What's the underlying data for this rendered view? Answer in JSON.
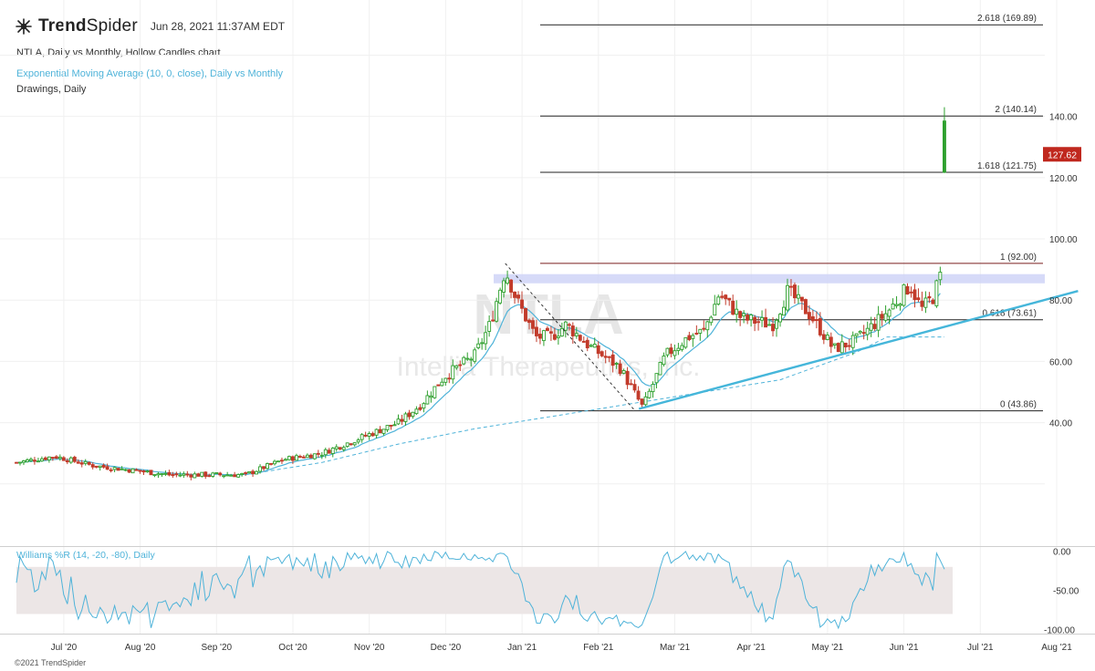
{
  "brand": {
    "name_bold": "Trend",
    "name_light": "Spider",
    "timestamp": "Jun 28, 2021 11:37AM EDT"
  },
  "header": {
    "title": "NTLA, Daily vs Monthly, Hollow Candles chart",
    "ema_label": "Exponential Moving Average (10, 0, close), Daily vs Monthly",
    "drawings_label": "Drawings, Daily"
  },
  "watermark": {
    "ticker": "NTLA",
    "company": "Intellia Therapeutics, Inc."
  },
  "footer": "©2021 TrendSpider",
  "colors": {
    "up": "#2ea02e",
    "down": "#c23b2b",
    "ema": "#4fb3d9",
    "price_tag": "#c0281e",
    "zone": "#cfd3f7",
    "wr_band": "#ece6e6"
  },
  "chart_data": {
    "type": "candlestick",
    "title": "NTLA, Daily vs Monthly, Hollow Candles chart",
    "ylim": [
      0,
      178
    ],
    "y_ticks": [
      {
        "value": 40,
        "label": "40.00"
      },
      {
        "value": 60,
        "label": "60.00"
      },
      {
        "value": 80,
        "label": "80.00"
      },
      {
        "value": 100,
        "label": "100.00"
      },
      {
        "value": 120,
        "label": "120.00"
      },
      {
        "value": 140,
        "label": "140.00"
      }
    ],
    "x_ticks": [
      "Jul '20",
      "Aug '20",
      "Sep '20",
      "Oct '20",
      "Nov '20",
      "Dec '20",
      "Jan '21",
      "Feb '21",
      "Mar '21",
      "Apr '21",
      "May '21",
      "Jun '21",
      "Jul '21",
      "Aug '21"
    ],
    "last_price": {
      "value": 127.62,
      "label": "127.62"
    },
    "price_anchors": [
      {
        "m": 0.0,
        "p": 27
      },
      {
        "m": 0.5,
        "p": 29
      },
      {
        "m": 1.0,
        "p": 26
      },
      {
        "m": 2.0,
        "p": 23
      },
      {
        "m": 3.0,
        "p": 23
      },
      {
        "m": 3.5,
        "p": 28
      },
      {
        "m": 4.0,
        "p": 30
      },
      {
        "m": 4.5,
        "p": 35
      },
      {
        "m": 5.0,
        "p": 40
      },
      {
        "m": 5.3,
        "p": 46
      },
      {
        "m": 5.6,
        "p": 55
      },
      {
        "m": 6.0,
        "p": 62
      },
      {
        "m": 6.2,
        "p": 72
      },
      {
        "m": 6.4,
        "p": 90
      },
      {
        "m": 6.55,
        "p": 80
      },
      {
        "m": 6.8,
        "p": 68
      },
      {
        "m": 7.0,
        "p": 68
      },
      {
        "m": 7.2,
        "p": 72
      },
      {
        "m": 7.5,
        "p": 65
      },
      {
        "m": 7.9,
        "p": 58
      },
      {
        "m": 8.2,
        "p": 45
      },
      {
        "m": 8.5,
        "p": 62
      },
      {
        "m": 8.8,
        "p": 68
      },
      {
        "m": 9.0,
        "p": 70
      },
      {
        "m": 9.2,
        "p": 82
      },
      {
        "m": 9.5,
        "p": 74
      },
      {
        "m": 9.9,
        "p": 72
      },
      {
        "m": 10.1,
        "p": 83
      },
      {
        "m": 10.4,
        "p": 75
      },
      {
        "m": 10.7,
        "p": 64
      },
      {
        "m": 11.0,
        "p": 67
      },
      {
        "m": 11.4,
        "p": 76
      },
      {
        "m": 11.7,
        "p": 85
      },
      {
        "m": 11.85,
        "p": 77
      },
      {
        "m": 12.0,
        "p": 81
      },
      {
        "m": 12.1,
        "p": 88
      }
    ],
    "breakout_candle": {
      "m": 12.15,
      "open": 121.75,
      "close": 138.5,
      "high": 143,
      "low": 121.5
    },
    "fibonacci": [
      {
        "level": "2.618",
        "value": 169.89,
        "label": "2.618 (169.89)"
      },
      {
        "level": "2",
        "value": 140.14,
        "label": "2 (140.14)"
      },
      {
        "level": "1.618",
        "value": 121.75,
        "label": "1.618 (121.75)"
      },
      {
        "level": "1",
        "value": 92.0,
        "label": "1 (92.00)"
      },
      {
        "level": "0.618",
        "value": 73.61,
        "label": "0.618 (73.61)"
      },
      {
        "level": "0",
        "value": 43.86,
        "label": "0 (43.86)"
      }
    ],
    "resistance_zone": {
      "low": 85.5,
      "high": 88.5
    },
    "trendline": {
      "from": {
        "m": 8.15,
        "p": 44.5
      },
      "to": {
        "m": 13.9,
        "p": 83
      }
    },
    "trend_drawdown": {
      "from": {
        "m": 6.4,
        "p": 92
      },
      "to": {
        "m": 8.1,
        "p": 43.86
      }
    },
    "monthly_ema": [
      {
        "m": 3.0,
        "p": 23
      },
      {
        "m": 4.0,
        "p": 27
      },
      {
        "m": 5.0,
        "p": 33
      },
      {
        "m": 6.0,
        "p": 38
      },
      {
        "m": 7.0,
        "p": 42
      },
      {
        "m": 8.0,
        "p": 46
      },
      {
        "m": 9.0,
        "p": 50
      },
      {
        "m": 10.0,
        "p": 54
      },
      {
        "m": 11.0,
        "p": 63
      },
      {
        "m": 11.4,
        "p": 68
      },
      {
        "m": 12.15,
        "p": 68
      }
    ],
    "williams_r": {
      "label": "Williams %R (14, -20, -80), Daily",
      "ylim": [
        -105,
        3
      ],
      "band": [
        -20,
        -80
      ],
      "y_ticks": [
        {
          "value": 0,
          "label": "0.00"
        },
        {
          "value": -50,
          "label": "-50.00"
        },
        {
          "value": -100,
          "label": "-100.00"
        }
      ]
    }
  }
}
